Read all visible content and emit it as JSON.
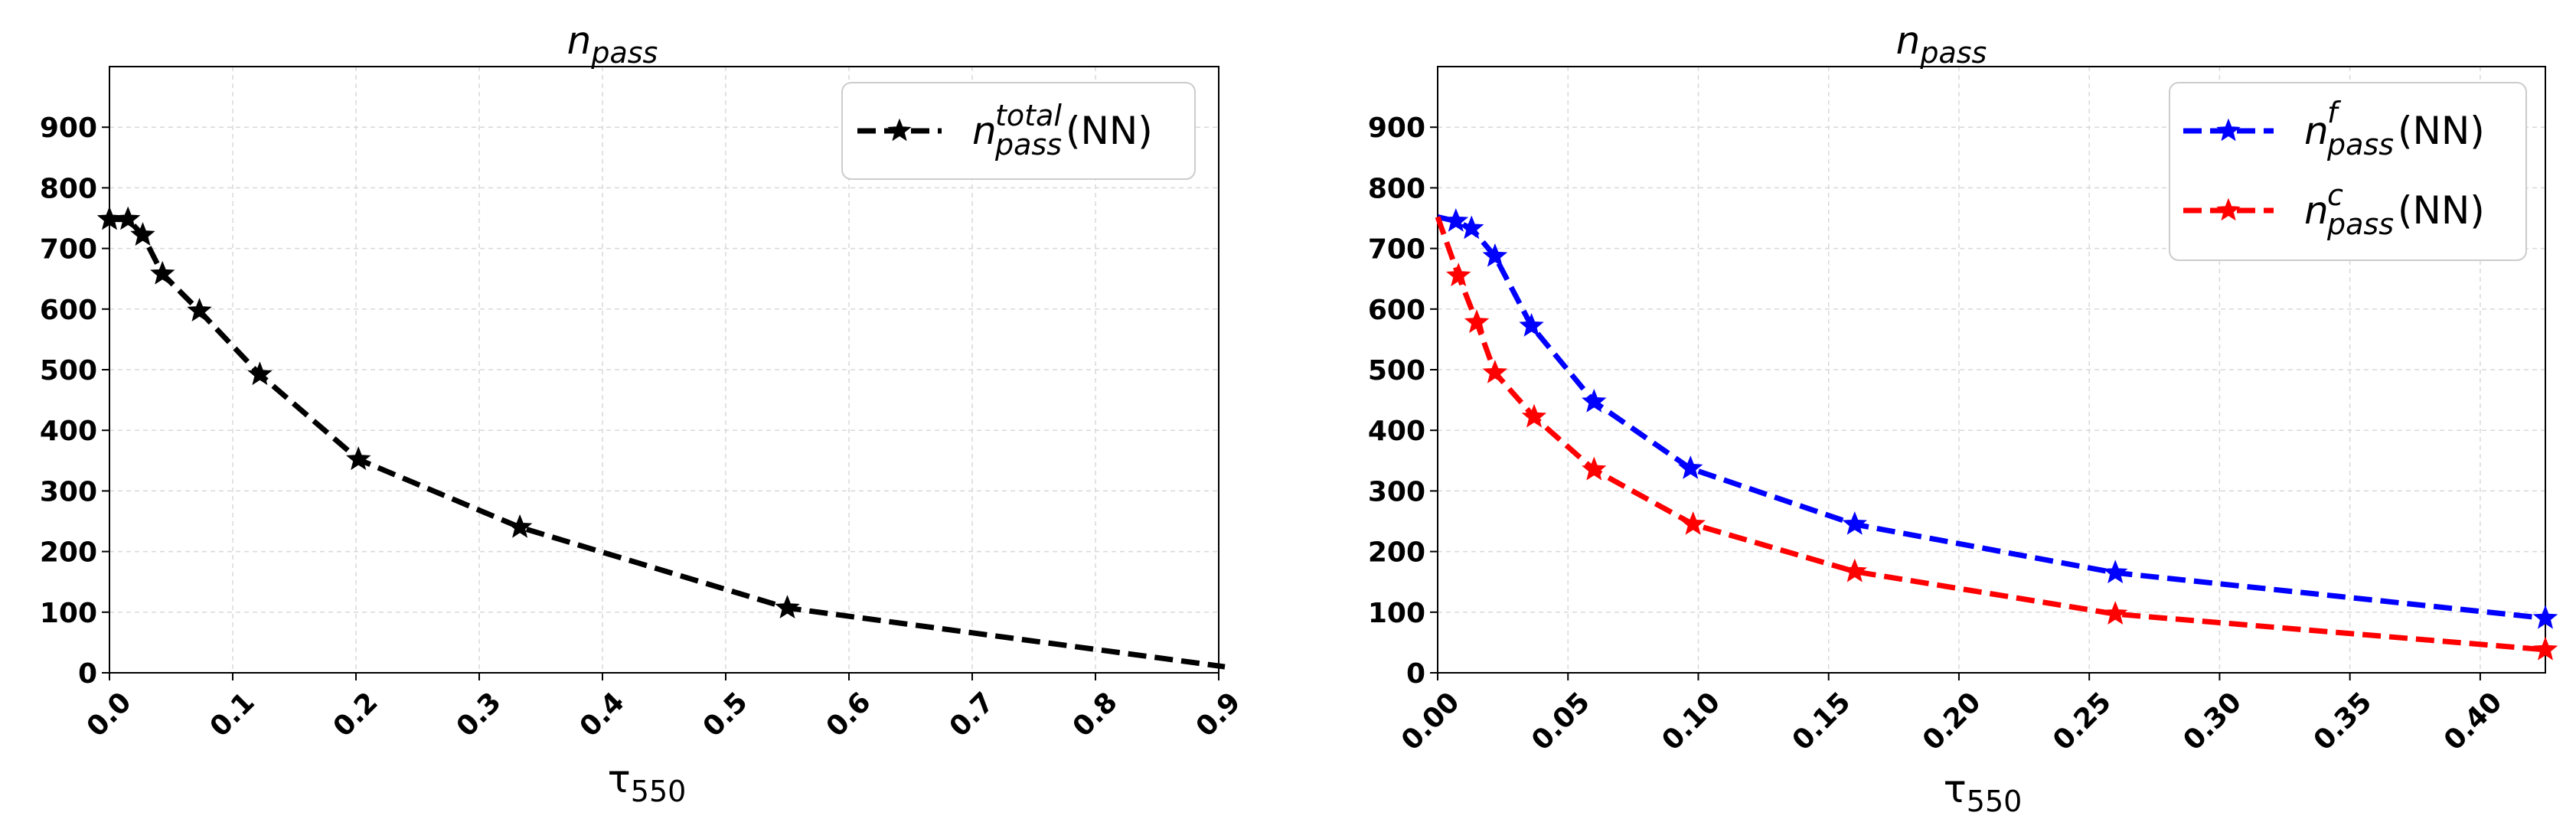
{
  "chart_data": [
    {
      "type": "line",
      "title_base": "n",
      "title_sub": "pass",
      "xlabel_base": "τ",
      "xlabel_sub": "550",
      "xlim": [
        0.0,
        0.9
      ],
      "ylim": [
        0,
        1000
      ],
      "xticks": [
        "0.0",
        "0.1",
        "0.2",
        "0.3",
        "0.4",
        "0.5",
        "0.6",
        "0.7",
        "0.8",
        "0.9"
      ],
      "xtick_values": [
        0.0,
        0.1,
        0.2,
        0.3,
        0.4,
        0.5,
        0.6,
        0.7,
        0.8,
        0.9
      ],
      "yticks": [
        "0",
        "100",
        "200",
        "300",
        "400",
        "500",
        "600",
        "700",
        "800",
        "900"
      ],
      "ytick_values": [
        0,
        100,
        200,
        300,
        400,
        500,
        600,
        700,
        800,
        900
      ],
      "grid": true,
      "legend_position": "top-right",
      "series": [
        {
          "name": "n_pass^total(NN)",
          "legend_base": "n",
          "legend_sup": "total",
          "legend_sub": "pass",
          "legend_suffix": "(NN)",
          "color": "#000000",
          "x": [
            0.0,
            0.015,
            0.027,
            0.043,
            0.073,
            0.122,
            0.202,
            0.333,
            0.55,
            0.905
          ],
          "y": [
            748,
            748,
            722,
            658,
            597,
            492,
            352,
            240,
            107,
            10
          ],
          "markers": [
            true,
            true,
            true,
            true,
            true,
            true,
            true,
            true,
            true,
            false
          ]
        }
      ]
    },
    {
      "type": "line",
      "title_base": "n",
      "title_sub": "pass",
      "xlabel_base": "τ",
      "xlabel_sub": "550",
      "xlim": [
        0.0,
        0.425
      ],
      "ylim": [
        0,
        1000
      ],
      "xticks": [
        "0.00",
        "0.05",
        "0.10",
        "0.15",
        "0.20",
        "0.25",
        "0.30",
        "0.35",
        "0.40"
      ],
      "xtick_values": [
        0.0,
        0.05,
        0.1,
        0.15,
        0.2,
        0.25,
        0.3,
        0.35,
        0.4
      ],
      "yticks": [
        "0",
        "100",
        "200",
        "300",
        "400",
        "500",
        "600",
        "700",
        "800",
        "900"
      ],
      "ytick_values": [
        0,
        100,
        200,
        300,
        400,
        500,
        600,
        700,
        800,
        900
      ],
      "grid": true,
      "legend_position": "top-right",
      "series": [
        {
          "name": "n_pass^f(NN)",
          "legend_base": "n",
          "legend_sup": "f",
          "legend_sub": "pass",
          "legend_suffix": "(NN)",
          "color": "#0000ff",
          "x": [
            0.0,
            0.007,
            0.013,
            0.022,
            0.036,
            0.06,
            0.097,
            0.16,
            0.26,
            0.425
          ],
          "y": [
            752,
            745,
            733,
            687,
            572,
            447,
            337,
            245,
            165,
            90
          ],
          "markers": [
            false,
            true,
            true,
            true,
            true,
            true,
            true,
            true,
            true,
            true
          ]
        },
        {
          "name": "n_pass^c(NN)",
          "legend_base": "n",
          "legend_sup": "c",
          "legend_sub": "pass",
          "legend_suffix": "(NN)",
          "color": "#ff0000",
          "x": [
            0.0,
            0.008,
            0.015,
            0.022,
            0.037,
            0.06,
            0.098,
            0.16,
            0.26,
            0.425
          ],
          "y": [
            752,
            655,
            578,
            495,
            422,
            335,
            245,
            167,
            97,
            38
          ],
          "markers": [
            false,
            true,
            true,
            true,
            true,
            true,
            true,
            true,
            true,
            true
          ]
        }
      ]
    }
  ]
}
